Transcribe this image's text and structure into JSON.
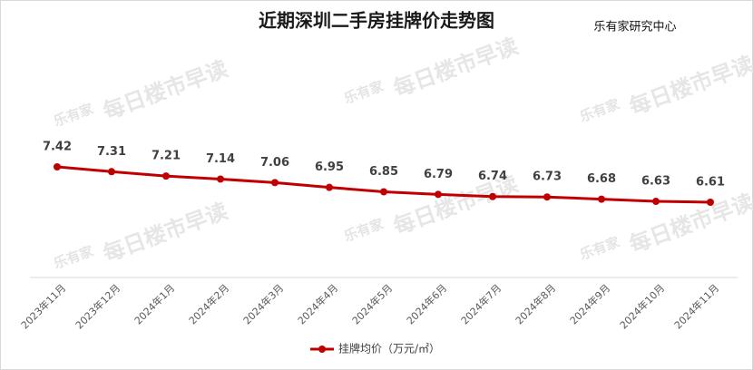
{
  "chart_data": {
    "type": "line",
    "title": "近期深圳二手房挂牌价走势图",
    "source": "乐有家研究中心",
    "watermark_logo": "乐有家",
    "watermark": "每日楼市早读",
    "categories": [
      "2023年11月",
      "2023年12月",
      "2024年1月",
      "2024年2月",
      "2024年3月",
      "2024年4月",
      "2024年5月",
      "2024年6月",
      "2024年7月",
      "2024年8月",
      "2024年9月",
      "2024年10月",
      "2024年11月"
    ],
    "series": [
      {
        "name": "挂牌均价（万元/㎡）",
        "color": "#c00000",
        "values": [
          7.42,
          7.31,
          7.21,
          7.14,
          7.06,
          6.95,
          6.85,
          6.79,
          6.74,
          6.73,
          6.68,
          6.63,
          6.61
        ]
      }
    ],
    "legend": "bottom"
  }
}
